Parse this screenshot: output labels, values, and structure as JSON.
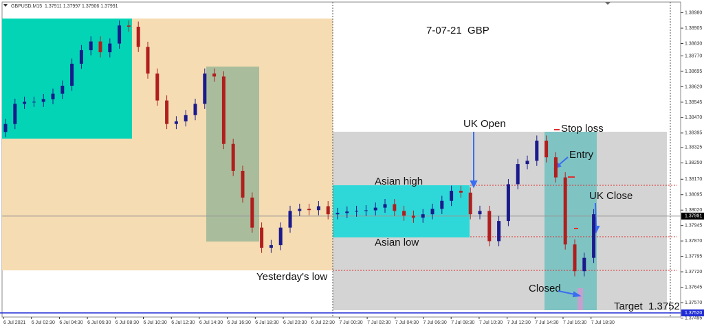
{
  "chart_data": {
    "type": "candlestick",
    "header": "GBPUSD,M15  1.37911 1.37997 1.37906 1.37991",
    "title": "7-07-21  GBP",
    "annotations": {
      "uk_open": "UK Open",
      "stop_loss": "Stop loss",
      "entry": "Entry",
      "uk_close": "UK Close",
      "asian_high": "Asian high",
      "asian_low": "Asian low",
      "yesterdays_low": "Yesterday's low",
      "closed": "Closed",
      "target": "Target  1.3752"
    },
    "x_labels": [
      "6 Jul 2021",
      "6 Jul 02:30",
      "6 Jul 04:30",
      "6 Jul 06:30",
      "6 Jul 08:30",
      "6 Jul 10:30",
      "6 Jul 12:30",
      "6 Jul 14:30",
      "6 Jul 16:30",
      "6 Jul 18:30",
      "6 Jul 20:30",
      "6 Jul 22:30",
      "7 Jul 00:30",
      "7 Jul 02:30",
      "7 Jul 04:30",
      "7 Jul 06:30",
      "7 Jul 08:30",
      "7 Jul 10:30",
      "7 Jul 12:30",
      "7 Jul 14:30",
      "7 Jul 16:30",
      "7 Jul 18:30"
    ],
    "ylim": [
      1.375,
      1.39032
    ],
    "yticks": [
      {
        "value": 1.3898,
        "label": "1.38980"
      },
      {
        "value": 1.38905,
        "label": "1.38905"
      },
      {
        "value": 1.3883,
        "label": "1.38830"
      },
      {
        "value": 1.3877,
        "label": "1.38770"
      },
      {
        "value": 1.38695,
        "label": "1.38695"
      },
      {
        "value": 1.3862,
        "label": "1.38620"
      },
      {
        "value": 1.38545,
        "label": "1.38545"
      },
      {
        "value": 1.3847,
        "label": "1.38470"
      },
      {
        "value": 1.38395,
        "label": "1.38395"
      },
      {
        "value": 1.38325,
        "label": "1.38325"
      },
      {
        "value": 1.3825,
        "label": "1.38250"
      },
      {
        "value": 1.3817,
        "label": "1.38170"
      },
      {
        "value": 1.38095,
        "label": "1.38095"
      },
      {
        "value": 1.3802,
        "label": "1.38020"
      },
      {
        "value": 1.37945,
        "label": "1.37945"
      },
      {
        "value": 1.3787,
        "label": "1.37870"
      },
      {
        "value": 1.37795,
        "label": "1.37795"
      },
      {
        "value": 1.3772,
        "label": "1.37720"
      },
      {
        "value": 1.37645,
        "label": "1.37645"
      },
      {
        "value": 1.3757,
        "label": "1.37570"
      },
      {
        "value": 1.37495,
        "label": "1.37495"
      }
    ],
    "current_price": {
      "value": 1.37991,
      "label": "1.37991"
    },
    "target_price": {
      "value": 1.3752,
      "label": "1.37520"
    },
    "up_color": "#1a1a8c",
    "down_color": "#b01e1e",
    "open": [
      1.384,
      1.38439,
      1.38537,
      1.38547,
      1.38547,
      1.3856,
      1.38586,
      1.38625,
      1.38732,
      1.38798,
      1.3884,
      1.38788,
      1.3883,
      1.38918,
      1.38912,
      1.38814,
      1.38684,
      1.38553,
      1.38439,
      1.38452,
      1.38482,
      1.38537,
      1.38684,
      1.3867,
      1.38342,
      1.38211,
      1.38081,
      1.37935,
      1.37837,
      1.3785,
      1.37935,
      1.38016,
      1.38026,
      1.3802,
      1.38039,
      1.38,
      1.38006,
      1.38013,
      1.38016,
      1.38019,
      1.38032,
      1.38049,
      1.38016,
      1.37993,
      1.37983,
      1.38,
      1.38026,
      1.38065,
      1.38114,
      1.38105,
      1.38,
      1.38016,
      1.37869,
      1.37967,
      1.38146,
      1.38244,
      1.3826,
      1.38358,
      1.38277,
      1.38179,
      1.37853,
      1.37723,
      1.37788
    ],
    "high": [
      1.38464,
      1.38562,
      1.38572,
      1.38572,
      1.38585,
      1.38611,
      1.3865,
      1.38757,
      1.38823,
      1.38865,
      1.38865,
      1.38855,
      1.38943,
      1.38943,
      1.38937,
      1.38839,
      1.38709,
      1.38578,
      1.38477,
      1.38507,
      1.38562,
      1.38709,
      1.38709,
      1.38695,
      1.38367,
      1.38236,
      1.38106,
      1.3796,
      1.37875,
      1.3796,
      1.38041,
      1.38051,
      1.38051,
      1.38064,
      1.38064,
      1.38031,
      1.38038,
      1.38041,
      1.38044,
      1.38057,
      1.38074,
      1.38074,
      1.38041,
      1.38018,
      1.38025,
      1.38051,
      1.3809,
      1.38139,
      1.38139,
      1.3813,
      1.38041,
      1.38041,
      1.37992,
      1.38171,
      1.38269,
      1.38285,
      1.38383,
      1.38383,
      1.38302,
      1.38204,
      1.37878,
      1.37813,
      1.38025
    ],
    "low": [
      1.38375,
      1.38414,
      1.38512,
      1.38522,
      1.38522,
      1.38535,
      1.38561,
      1.386,
      1.38707,
      1.38773,
      1.38763,
      1.38763,
      1.38805,
      1.38887,
      1.38789,
      1.38659,
      1.38528,
      1.38414,
      1.38414,
      1.38427,
      1.38457,
      1.38512,
      1.38645,
      1.38317,
      1.38186,
      1.38056,
      1.3791,
      1.37812,
      1.37812,
      1.37825,
      1.3791,
      1.37991,
      1.37995,
      1.37995,
      1.37975,
      1.37975,
      1.37981,
      1.37988,
      1.37991,
      1.37994,
      1.38007,
      1.37991,
      1.37968,
      1.37958,
      1.37958,
      1.37975,
      1.38001,
      1.3804,
      1.3808,
      1.37975,
      1.37975,
      1.37844,
      1.37844,
      1.37942,
      1.38121,
      1.38219,
      1.38235,
      1.38252,
      1.38154,
      1.37828,
      1.37698,
      1.37698,
      1.37763
    ],
    "close": [
      1.38439,
      1.38537,
      1.38547,
      1.38547,
      1.3856,
      1.38586,
      1.38625,
      1.38732,
      1.38798,
      1.3884,
      1.38788,
      1.3883,
      1.38918,
      1.38912,
      1.38814,
      1.38684,
      1.38553,
      1.38439,
      1.38452,
      1.38482,
      1.38537,
      1.38684,
      1.3867,
      1.38342,
      1.38211,
      1.38081,
      1.37935,
      1.37837,
      1.3785,
      1.37935,
      1.38016,
      1.38026,
      1.3802,
      1.38039,
      1.38,
      1.38006,
      1.38013,
      1.38016,
      1.38019,
      1.38032,
      1.38049,
      1.38016,
      1.37993,
      1.37983,
      1.38,
      1.38026,
      1.38065,
      1.38114,
      1.38105,
      1.38,
      1.38016,
      1.37869,
      1.37967,
      1.38146,
      1.38244,
      1.3826,
      1.38358,
      1.38277,
      1.38179,
      1.37853,
      1.37723,
      1.37788,
      1.38
    ]
  }
}
